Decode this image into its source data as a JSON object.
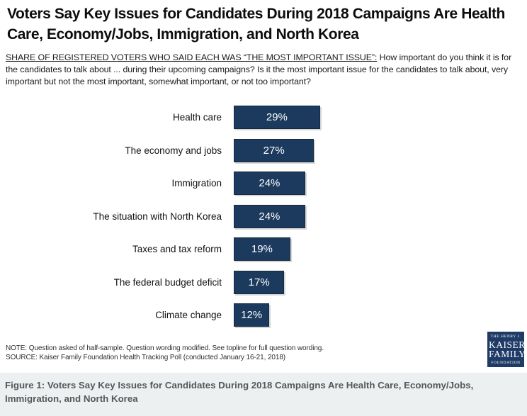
{
  "title": "Voters Say Key Issues for Candidates During 2018 Campaigns Are Health Care, Economy/Jobs, Immigration, and North Korea",
  "subtitle": {
    "lead": "SHARE OF REGISTERED VOTERS WHO SAID EACH WAS “THE MOST IMPORTANT ISSUE”:",
    "question": "  How important do you think it is for the candidates to talk about ... during their upcoming campaigns? Is it the most important issue for the candidates to talk about, very important but not the most important, somewhat important, or not too important?"
  },
  "chart_data": {
    "type": "bar",
    "orientation": "horizontal",
    "categories": [
      "Health care",
      "The economy and jobs",
      "Immigration",
      "The situation with North Korea",
      "Taxes and tax reform",
      "The federal budget deficit",
      "Climate change"
    ],
    "values": [
      29,
      27,
      24,
      24,
      19,
      17,
      12
    ],
    "value_labels": [
      "29%",
      "27%",
      "24%",
      "24%",
      "19%",
      "17%",
      "12%"
    ],
    "xlim": [
      0,
      100
    ],
    "grid": false,
    "legend": "none",
    "bar_color": "#1b3a5e",
    "value_label_color": "#ffffff"
  },
  "notes": {
    "note": "NOTE: Question asked of half-sample. Question wording modified. See topline for full question wording.",
    "source": "SOURCE: Kaiser Family Foundation Health Tracking Poll (conducted January 16-21, 2018)"
  },
  "logo": {
    "line1": "THE HENRY J.",
    "line2": "KAISER",
    "line3": "FAMILY",
    "line4": "FOUNDATION",
    "bg_color": "#1e3a66"
  },
  "footer": {
    "caption": "Figure 1: Voters Say Key Issues for Candidates During 2018 Campaigns Are Health Care, Economy/Jobs, Immigration, and North Korea",
    "bg_color": "#edf0f0"
  }
}
